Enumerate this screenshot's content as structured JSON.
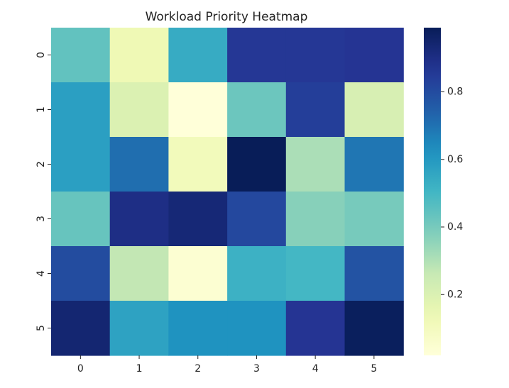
{
  "chart_data": {
    "type": "heatmap",
    "title": "Workload Priority Heatmap",
    "xlabel": "",
    "ylabel": "",
    "x_labels": [
      "0",
      "1",
      "2",
      "3",
      "4",
      "5"
    ],
    "y_labels": [
      "0",
      "1",
      "2",
      "3",
      "4",
      "5"
    ],
    "values": [
      [
        0.44,
        0.13,
        0.54,
        0.86,
        0.86,
        0.87
      ],
      [
        0.58,
        0.2,
        0.02,
        0.42,
        0.84,
        0.21
      ],
      [
        0.58,
        0.71,
        0.11,
        0.99,
        0.31,
        0.69
      ],
      [
        0.43,
        0.9,
        0.93,
        0.81,
        0.37,
        0.4
      ],
      [
        0.8,
        0.27,
        0.04,
        0.52,
        0.5,
        0.78
      ],
      [
        0.94,
        0.57,
        0.62,
        0.62,
        0.87,
        0.98
      ]
    ],
    "colormap": "YlGnBu",
    "vmin": 0.02,
    "vmax": 0.99,
    "colorbar": {
      "ticks": [
        0.2,
        0.4,
        0.6,
        0.8
      ],
      "tick_labels": [
        "0.2",
        "0.4",
        "0.6",
        "0.8"
      ],
      "placement": "right"
    },
    "grid": false
  }
}
